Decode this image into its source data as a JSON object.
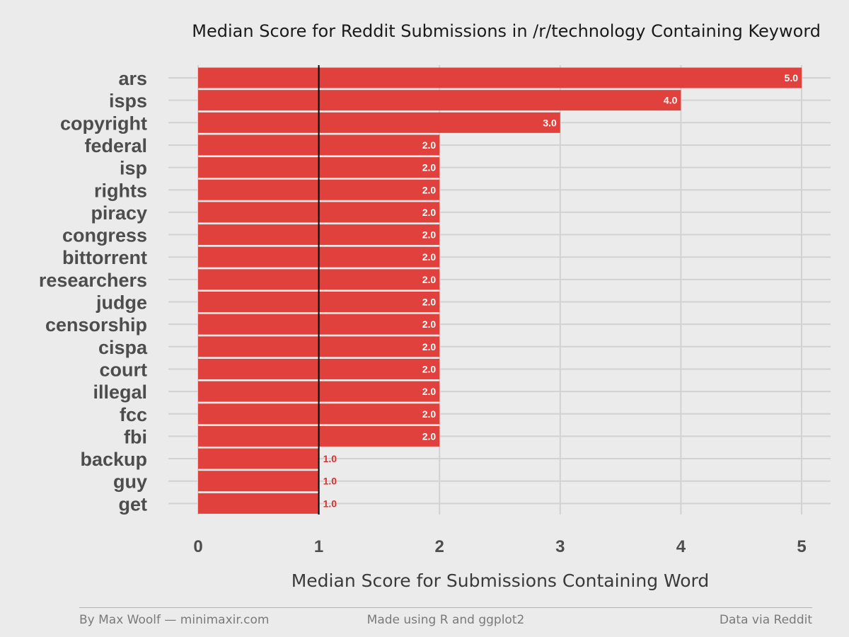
{
  "chart_data": {
    "type": "bar",
    "orientation": "horizontal",
    "title": "Median Score for Reddit Submissions in /r/technology Containing Keyword",
    "xlabel": "Median Score for Submissions Containing Word",
    "ylabel": "",
    "categories": [
      "ars",
      "isps",
      "copyright",
      "federal",
      "isp",
      "rights",
      "piracy",
      "congress",
      "bittorrent",
      "researchers",
      "judge",
      "censorship",
      "cispa",
      "court",
      "illegal",
      "fcc",
      "fbi",
      "backup",
      "guy",
      "get"
    ],
    "values": [
      5.0,
      4.0,
      3.0,
      2.0,
      2.0,
      2.0,
      2.0,
      2.0,
      2.0,
      2.0,
      2.0,
      2.0,
      2.0,
      2.0,
      2.0,
      2.0,
      2.0,
      1.0,
      1.0,
      1.0
    ],
    "value_labels": [
      "5.0",
      "4.0",
      "3.0",
      "2.0",
      "2.0",
      "2.0",
      "2.0",
      "2.0",
      "2.0",
      "2.0",
      "2.0",
      "2.0",
      "2.0",
      "2.0",
      "2.0",
      "2.0",
      "2.0",
      "1.0",
      "1.0",
      "1.0"
    ],
    "x_ticks": [
      0,
      1,
      2,
      3,
      4,
      5
    ],
    "xlim": [
      0,
      5
    ],
    "reference_line_x": 1,
    "grid": true,
    "legend": "none",
    "colors": {
      "bar": "#e0413d",
      "background": "#ebebeb",
      "grid": "#d2d2d2",
      "reference_line": "#000000",
      "label_inside": "#ffffff",
      "label_outside": "#d7322f"
    }
  },
  "footer": {
    "left": "By Max Woolf — minimaxir.com",
    "center": "Made using R and ggplot2",
    "right": "Data via Reddit"
  }
}
